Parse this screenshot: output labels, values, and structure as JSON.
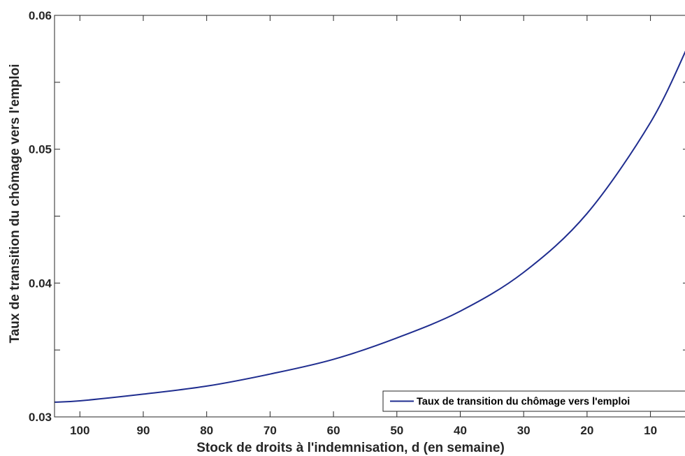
{
  "chart_data": {
    "type": "line",
    "title": "",
    "xlabel": "Stock de droits à l'indemnisation, d (en semaine)",
    "ylabel": "Taux de transition du chômage vers l'emploi",
    "x_reversed": true,
    "xlim": [
      104,
      4
    ],
    "ylim": [
      0.03,
      0.06
    ],
    "x_ticks": [
      100,
      90,
      80,
      70,
      60,
      50,
      40,
      30,
      20,
      10
    ],
    "x_tick_labels": [
      "100",
      "90",
      "80",
      "70",
      "60",
      "50",
      "40",
      "30",
      "20",
      "10"
    ],
    "y_ticks": [
      0.03,
      0.035,
      0.04,
      0.045,
      0.05,
      0.055,
      0.06
    ],
    "y_tick_labels": [
      "0.03",
      "",
      "0.04",
      "",
      "0.05",
      "",
      "0.06"
    ],
    "grid": false,
    "legend_position": "bottom-right",
    "series": [
      {
        "name": "Taux de transition du chômage vers l'emploi",
        "color": "#1f2d8f",
        "x": [
          104,
          100,
          90,
          80,
          70,
          60,
          50,
          40,
          30,
          20,
          10,
          4
        ],
        "y": [
          0.0311,
          0.0312,
          0.0317,
          0.0323,
          0.0332,
          0.0343,
          0.0359,
          0.0379,
          0.0408,
          0.0452,
          0.052,
          0.0578
        ]
      }
    ]
  }
}
